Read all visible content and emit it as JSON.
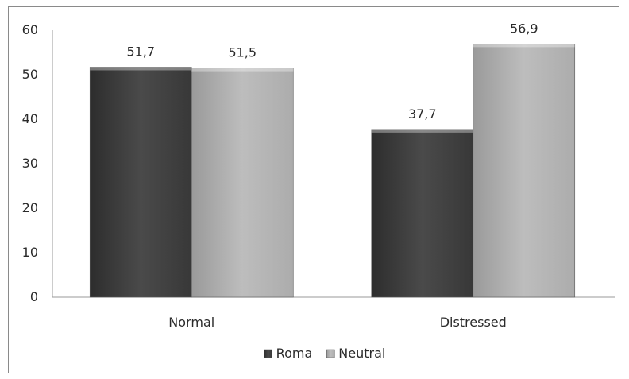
{
  "chart_data": {
    "type": "bar",
    "categories": [
      "Normal",
      "Distressed"
    ],
    "series": [
      {
        "name": "Roma",
        "values": [
          51.7,
          37.7
        ],
        "labels": [
          "51,7",
          "37,7"
        ],
        "color": "#3f3f3f"
      },
      {
        "name": "Neutral",
        "values": [
          51.5,
          56.9
        ],
        "labels": [
          "51,5",
          "56,9"
        ],
        "color": "#a9a9a9"
      }
    ],
    "title": "",
    "xlabel": "",
    "ylabel": "",
    "ylim": [
      0,
      60
    ],
    "yticks": [
      0,
      10,
      20,
      30,
      40,
      50,
      60
    ],
    "grid": false,
    "legend_position": "bottom"
  }
}
